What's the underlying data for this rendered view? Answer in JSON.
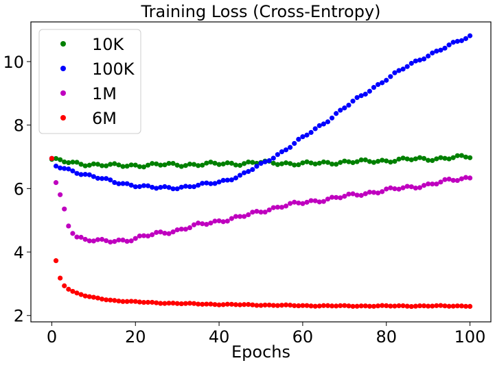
{
  "chart_data": {
    "type": "scatter",
    "title": "Training Loss (Cross-Entropy)",
    "xlabel": "Epochs",
    "ylabel": "",
    "xlim": [
      -5,
      105
    ],
    "ylim": [
      1.8,
      11.25
    ],
    "xticks": [
      0,
      20,
      40,
      60,
      80,
      100
    ],
    "yticks": [
      2,
      4,
      6,
      8,
      10
    ],
    "grid": false,
    "legend_position": "top-left",
    "anchors": [
      {
        "name": "10K",
        "color": "#008000",
        "points": [
          [
            0,
            6.92
          ],
          [
            5,
            6.8
          ],
          [
            10,
            6.76
          ],
          [
            15,
            6.72
          ],
          [
            20,
            6.73
          ],
          [
            25,
            6.75
          ],
          [
            30,
            6.75
          ],
          [
            35,
            6.76
          ],
          [
            40,
            6.78
          ],
          [
            45,
            6.79
          ],
          [
            50,
            6.82
          ],
          [
            55,
            6.8
          ],
          [
            60,
            6.78
          ],
          [
            65,
            6.8
          ],
          [
            70,
            6.84
          ],
          [
            75,
            6.85
          ],
          [
            80,
            6.88
          ],
          [
            85,
            6.92
          ],
          [
            90,
            6.93
          ],
          [
            95,
            6.97
          ],
          [
            100,
            7.0
          ]
        ],
        "jitter": 0.04
      },
      {
        "name": "100K",
        "color": "#0000ff",
        "points": [
          [
            0,
            6.95
          ],
          [
            1,
            6.7
          ],
          [
            5,
            6.55
          ],
          [
            10,
            6.38
          ],
          [
            15,
            6.2
          ],
          [
            20,
            6.1
          ],
          [
            25,
            6.02
          ],
          [
            30,
            6.03
          ],
          [
            35,
            6.1
          ],
          [
            40,
            6.2
          ],
          [
            45,
            6.4
          ],
          [
            50,
            6.75
          ],
          [
            55,
            7.15
          ],
          [
            60,
            7.6
          ],
          [
            65,
            8.05
          ],
          [
            70,
            8.55
          ],
          [
            75,
            9.0
          ],
          [
            80,
            9.45
          ],
          [
            85,
            9.85
          ],
          [
            90,
            10.2
          ],
          [
            95,
            10.5
          ],
          [
            100,
            10.8
          ]
        ],
        "jitter": 0.03
      },
      {
        "name": "1M",
        "color": "#bf00bf",
        "points": [
          [
            0,
            6.95
          ],
          [
            1,
            6.2
          ],
          [
            2,
            5.78
          ],
          [
            3,
            5.33
          ],
          [
            4,
            4.85
          ],
          [
            5,
            4.65
          ],
          [
            6,
            4.5
          ],
          [
            8,
            4.38
          ],
          [
            10,
            4.36
          ],
          [
            12,
            4.34
          ],
          [
            15,
            4.36
          ],
          [
            18,
            4.38
          ],
          [
            20,
            4.42
          ],
          [
            25,
            4.58
          ],
          [
            30,
            4.68
          ],
          [
            35,
            4.85
          ],
          [
            40,
            4.98
          ],
          [
            45,
            5.1
          ],
          [
            50,
            5.28
          ],
          [
            55,
            5.45
          ],
          [
            60,
            5.55
          ],
          [
            65,
            5.65
          ],
          [
            70,
            5.75
          ],
          [
            75,
            5.85
          ],
          [
            80,
            5.95
          ],
          [
            85,
            6.03
          ],
          [
            90,
            6.12
          ],
          [
            95,
            6.25
          ],
          [
            100,
            6.35
          ]
        ],
        "jitter": 0.04
      },
      {
        "name": "6M",
        "color": "#ff0000",
        "points": [
          [
            0,
            6.95
          ],
          [
            1,
            3.72
          ],
          [
            2,
            3.18
          ],
          [
            3,
            2.95
          ],
          [
            4,
            2.84
          ],
          [
            5,
            2.76
          ],
          [
            6,
            2.7
          ],
          [
            8,
            2.62
          ],
          [
            10,
            2.56
          ],
          [
            15,
            2.47
          ],
          [
            20,
            2.43
          ],
          [
            25,
            2.4
          ],
          [
            30,
            2.38
          ],
          [
            40,
            2.35
          ],
          [
            50,
            2.33
          ],
          [
            60,
            2.31
          ],
          [
            70,
            2.3
          ],
          [
            80,
            2.3
          ],
          [
            90,
            2.3
          ],
          [
            100,
            2.3
          ]
        ],
        "jitter": 0.01
      }
    ]
  }
}
